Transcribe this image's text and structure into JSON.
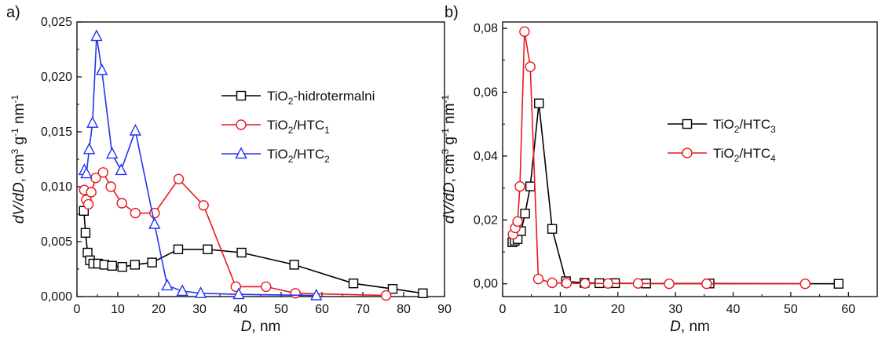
{
  "chart_data": [
    {
      "type": "line",
      "panel_label": "a)",
      "xlabel_main": "D",
      "xlabel_unit": ", nm",
      "ylabel": "dV/dD, cm3 g-1 nm-1",
      "xlim": [
        0,
        90
      ],
      "ylim": [
        0,
        0.025
      ],
      "xticks": [
        "0",
        "10",
        "20",
        "30",
        "40",
        "50",
        "60",
        "70",
        "80",
        "90"
      ],
      "xtick_values": [
        0,
        10,
        20,
        30,
        40,
        50,
        60,
        70,
        80,
        90
      ],
      "yticks": [
        "0,000",
        "0,005",
        "0,010",
        "0,015",
        "0,020",
        "0,025"
      ],
      "ytick_values": [
        0,
        0.005,
        0.01,
        0.015,
        0.02,
        0.025
      ],
      "legend_position": "upper-right",
      "series": [
        {
          "name": "TiO2-hidrotermalni",
          "legend_parts": [
            "TiO",
            "2",
            "-hidrotermalni"
          ],
          "color": "#000000",
          "marker": "square",
          "x": [
            1.7,
            2.1,
            2.6,
            3.2,
            4.0,
            5.2,
            6.7,
            8.6,
            11.1,
            14.2,
            18.4,
            24.8,
            32.0,
            40.3,
            53.2,
            67.7,
            77.3,
            84.7
          ],
          "y": [
            0.0078,
            0.0058,
            0.004,
            0.0033,
            0.003,
            0.003,
            0.0029,
            0.0028,
            0.0027,
            0.0029,
            0.0031,
            0.0043,
            0.0043,
            0.004,
            0.0029,
            0.0012,
            0.0007,
            0.0003
          ]
        },
        {
          "name": "TiO2/HTC1",
          "legend_parts": [
            "TiO",
            "2",
            "/HTC",
            "1"
          ],
          "color": "#e8191e",
          "marker": "circle",
          "x": [
            1.8,
            2.3,
            2.8,
            3.5,
            4.6,
            6.4,
            8.3,
            11.0,
            14.3,
            19.0,
            24.9,
            31.0,
            38.9,
            46.3,
            53.5,
            75.7
          ],
          "y": [
            0.0097,
            0.0088,
            0.0084,
            0.0095,
            0.0108,
            0.0113,
            0.01,
            0.0085,
            0.0076,
            0.0076,
            0.0107,
            0.0083,
            0.0009,
            0.0009,
            0.0003,
            0.0001
          ]
        },
        {
          "name": "TiO2/HTC2",
          "legend_parts": [
            "TiO",
            "2",
            "/HTC",
            "2"
          ],
          "color": "#2433f0",
          "marker": "triangle",
          "x": [
            1.8,
            2.3,
            3.0,
            3.8,
            4.8,
            6.1,
            8.6,
            10.8,
            14.3,
            19.0,
            22.1,
            25.8,
            30.3,
            39.6,
            58.6
          ],
          "y": [
            0.0115,
            0.0112,
            0.0134,
            0.0158,
            0.0237,
            0.0206,
            0.013,
            0.0115,
            0.0151,
            0.0066,
            0.001,
            0.0005,
            0.0003,
            0.0002,
            0.0001
          ]
        }
      ]
    },
    {
      "type": "line",
      "panel_label": "b)",
      "xlabel_main": "D",
      "xlabel_unit": ", nm",
      "ylabel": "dV/dD, cm3 g-1 nm-1",
      "xlim": [
        0,
        65
      ],
      "ylim": [
        -0.004,
        0.082
      ],
      "xticks": [
        "0",
        "10",
        "20",
        "30",
        "40",
        "50",
        "60"
      ],
      "xtick_values": [
        0,
        10,
        20,
        30,
        40,
        50,
        60
      ],
      "yticks": [
        "0,00",
        "0,02",
        "0,04",
        "0,06",
        "0,08"
      ],
      "ytick_values": [
        0,
        0.02,
        0.04,
        0.06,
        0.08
      ],
      "legend_position": "upper-right",
      "series": [
        {
          "name": "TiO2/HTC3",
          "legend_parts": [
            "TiO",
            "2",
            "/HTC",
            "3"
          ],
          "color": "#000000",
          "marker": "square",
          "x": [
            1.7,
            2.1,
            2.6,
            3.2,
            3.9,
            4.8,
            6.3,
            8.6,
            11.0,
            14.2,
            16.8,
            19.5,
            24.9,
            35.9,
            58.3
          ],
          "y": [
            0.013,
            0.0135,
            0.014,
            0.0165,
            0.022,
            0.0305,
            0.0565,
            0.0172,
            0.0008,
            0.0003,
            0.0002,
            0.0002,
            0.0001,
            0.0001,
            0.0
          ]
        },
        {
          "name": "TiO2/HTC4",
          "legend_parts": [
            "TiO",
            "2",
            "/HTC",
            "4"
          ],
          "color": "#e8191e",
          "marker": "circle",
          "x": [
            1.8,
            2.2,
            2.6,
            3.0,
            3.8,
            4.8,
            6.2,
            8.6,
            11.1,
            14.3,
            18.3,
            23.5,
            28.9,
            35.4,
            52.5
          ],
          "y": [
            0.0155,
            0.0175,
            0.0195,
            0.0305,
            0.079,
            0.068,
            0.0015,
            0.0003,
            0.0002,
            0.0001,
            0.0001,
            0.0001,
            0.0,
            0.0,
            0.0
          ]
        }
      ]
    }
  ]
}
